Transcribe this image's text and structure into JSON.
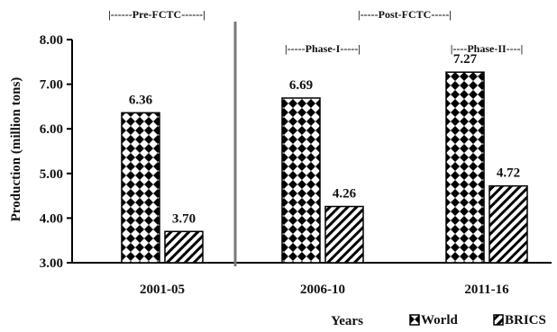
{
  "chart_data": {
    "type": "bar",
    "title": "",
    "xlabel": "Years",
    "ylabel": "Production (million tons)",
    "ylim": [
      3.0,
      8.0
    ],
    "yticks": [
      "3.00",
      "4.00",
      "5.00",
      "6.00",
      "7.00",
      "8.00"
    ],
    "categories": [
      "2001-05",
      "2006-10",
      "2011-16"
    ],
    "series": [
      {
        "name": "World",
        "values": [
          6.36,
          6.69,
          7.27
        ],
        "labels": [
          "6.36",
          "6.69",
          "7.27"
        ],
        "pattern": "diamond-checker",
        "color": "#000000"
      },
      {
        "name": "BRICS",
        "values": [
          3.7,
          4.26,
          4.72
        ],
        "labels": [
          "3.70",
          "4.26",
          "4.72"
        ],
        "pattern": "diagonal-hatch",
        "color": "#000000"
      }
    ],
    "legend_position": "bottom-right",
    "annotations": [
      {
        "text": "|------Pre-FCTC------|",
        "category_span": [
          0,
          0
        ]
      },
      {
        "text": "|-----Post-FCTC-----|",
        "category_span": [
          1,
          2
        ]
      },
      {
        "text": "|-----Phase-I-----|",
        "category_span": [
          1,
          1
        ]
      },
      {
        "text": "|----Phase-II----|",
        "category_span": [
          2,
          2
        ]
      }
    ],
    "divider_after_category": 0
  }
}
